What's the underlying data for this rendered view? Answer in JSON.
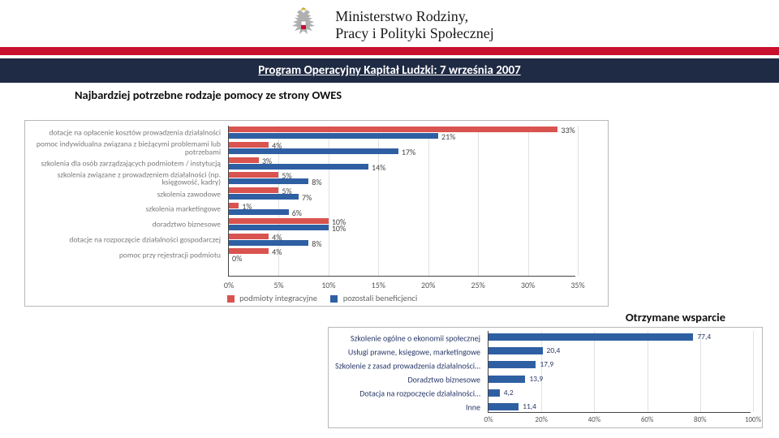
{
  "header": {
    "ministry_line1": "Ministerstwo Rodziny,",
    "ministry_line2": "Pracy i Polityki Społecznej",
    "eagle_colors": {
      "body": "#b0b0b0",
      "crown": "#d4af37",
      "shield_top": "#ffffff",
      "shield_bottom": "#c8102e"
    }
  },
  "red_bar_color": "#c8102e",
  "title_bar": {
    "text": "Program Operacyjny Kapitał Ludzki: 7 września 2007",
    "bg": "#1f2a44",
    "fg": "#ffffff"
  },
  "chart1": {
    "title": "Najbardziej potrzebne rodzaje pomocy ze strony OWES",
    "type": "grouped-horizontal-bar",
    "series": [
      {
        "id": "red",
        "label": "podmioty integracyjne",
        "color": "#d9534f"
      },
      {
        "id": "blue",
        "label": "pozostali beneficjenci",
        "color": "#2f5fa3"
      }
    ],
    "xlim": [
      0,
      35
    ],
    "xtick_step": 5,
    "xtick_suffix": "%",
    "categories": [
      {
        "label": "dotacje na opłacenie kosztów prowadzenia działalności",
        "red": 33,
        "blue": 21
      },
      {
        "label": "pomoc indywidualna związana z bieżącymi problemami lub potrzebami",
        "red": 4,
        "blue": 17
      },
      {
        "label": "szkolenia dla osób zarządzających podmiotem / instytucją",
        "red": 3,
        "blue": 14
      },
      {
        "label": "szkolenia związane z prowadzeniem działalności (np. księgowość, kadry)",
        "red": 5,
        "blue": 8
      },
      {
        "label": "szkolenia zawodowe",
        "red": 5,
        "blue": 7
      },
      {
        "label": "szkolenia marketingowe",
        "red": 1,
        "blue": 6
      },
      {
        "label": "doradztwo biznesowe",
        "red": 10,
        "blue": 10
      },
      {
        "label": "dotacje na rozpoczęcie działalności gospodarczej",
        "red": 4,
        "blue": 8
      },
      {
        "label": "pomoc przy rejestracji podmiotu",
        "red": 4,
        "blue": 0
      },
      {
        "label": "",
        "red": 0,
        "blue": 0
      }
    ],
    "label_fontsize": 9.5,
    "value_fontsize": 10,
    "grid_color": "#e2e2e2",
    "axis_color": "#444444",
    "border_color": "#b8b8b8",
    "background": "#ffffff"
  },
  "chart2": {
    "title": "Otrzymane wsparcie",
    "type": "horizontal-bar",
    "bar_color": "#2f5fa3",
    "xlim": [
      0,
      100
    ],
    "xtick_step": 20,
    "xtick_suffix": "%",
    "categories": [
      {
        "label": "Szkolenie ogólne o ekonomii społecznej",
        "value": 77.4
      },
      {
        "label": "Usługi prawne, księgowe, marketingowe",
        "value": 20.4
      },
      {
        "label": "Szkolenie z zasad prowadzenia działalności…",
        "value": 17.9
      },
      {
        "label": "Doradztwo biznesowe",
        "value": 13.9
      },
      {
        "label": "Dotacja na rozpoczęcie działalności…",
        "value": 4.2
      },
      {
        "label": "Inne",
        "value": 11.4
      }
    ],
    "label_color": "#2a3a6a",
    "label_fontsize": 10,
    "value_fontsize": 9.5,
    "grid_color": "#e2e2e2",
    "axis_color": "#444444",
    "border_color": "#b8b8b8",
    "background": "#ffffff"
  }
}
